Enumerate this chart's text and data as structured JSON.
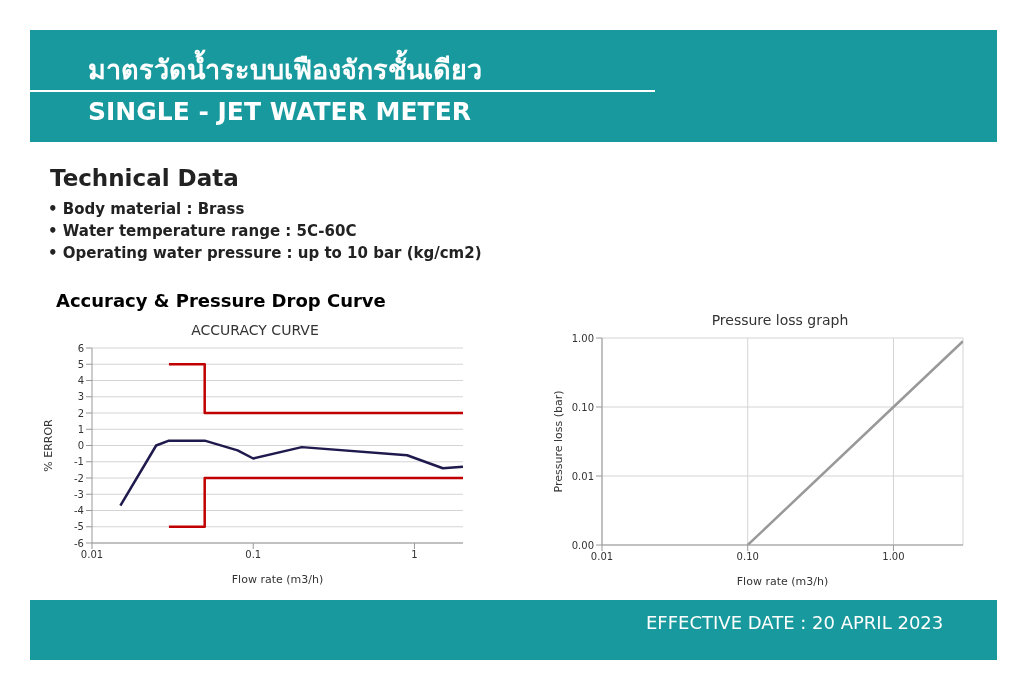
{
  "chart_data": [
    {
      "type": "other",
      "title": "มาตรวัดน้ำระบบเฟืองจักรชั้นเดียว",
      "subtitle": "SINGLE - JET WATER METER",
      "annotations": [
        "Technical Data",
        "• Body material : Brass",
        "• Water temperature range : 5C-60C",
        "• Operating water pressure : up to 10 bar (kg/cm2)",
        "Accuracy & Pressure Drop Curve",
        "EFFECTIVE DATE : 20 APRIL 2023"
      ]
    },
    {
      "type": "line",
      "title": "ACCURACY CURVE",
      "xlabel": "Flow rate (m3/h)",
      "ylabel": "% ERROR",
      "log": "x",
      "xlim": [
        0.01,
        2
      ],
      "xticks": [
        0.01,
        0.1,
        1
      ],
      "ylim": [
        -6,
        6
      ],
      "yticks": [
        -6,
        -5,
        -4,
        -3,
        -2,
        -1,
        0,
        1,
        2,
        3,
        4,
        5,
        6
      ],
      "grid": "y",
      "legend": false,
      "marker": "none",
      "line_style": "solid",
      "series": [
        {
          "color": "#1f1a4d",
          "x": [
            0.015,
            0.025,
            0.03,
            0.05,
            0.08,
            0.1,
            0.2,
            0.9,
            1.5,
            2
          ],
          "values": [
            -3.7,
            0,
            0.3,
            0.3,
            -0.3,
            -0.8,
            -0.1,
            -0.6,
            -1.4,
            -1.3
          ]
        },
        {
          "color": "#c00000",
          "x": [
            0.03,
            0.05,
            0.05,
            2
          ],
          "values": [
            5,
            5,
            2,
            2
          ]
        },
        {
          "color": "#c00000",
          "x": [
            0.03,
            0.05,
            0.05,
            2
          ],
          "values": [
            -5,
            -5,
            -2,
            -2
          ]
        }
      ]
    },
    {
      "type": "line",
      "title": "Pressure loss graph",
      "xlabel": "Flow rate (m3/h)",
      "ylabel": "Pressure loss (bar)",
      "log": "xy",
      "xlim": [
        0.01,
        3
      ],
      "xticks": [
        {
          "value": 0.01,
          "label": "0.01"
        },
        {
          "value": 0.1,
          "label": "0.10"
        },
        {
          "value": 1,
          "label": "1.00"
        }
      ],
      "ylim": [
        0.001,
        1
      ],
      "yticks": [
        {
          "value": 0.001,
          "label": "0.00"
        },
        {
          "value": 0.01,
          "label": "0.01"
        },
        {
          "value": 0.1,
          "label": "0.10"
        },
        {
          "value": 1,
          "label": "1.00"
        }
      ],
      "grid": true,
      "legend": false,
      "marker": "none",
      "line_style": "solid",
      "series": [
        {
          "color": "#999999",
          "x": [
            0.1,
            1,
            3
          ],
          "values": [
            0.001,
            0.1,
            0.9
          ]
        }
      ]
    }
  ]
}
